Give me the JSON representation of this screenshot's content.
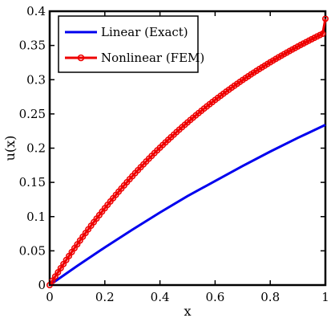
{
  "chart_data": {
    "type": "line",
    "xlabel": "x",
    "ylabel": "u(x)",
    "xlim": [
      0,
      1
    ],
    "ylim": [
      0,
      0.4
    ],
    "x_ticks": [
      0,
      0.2,
      0.4,
      0.6,
      0.8,
      1
    ],
    "x_tick_labels": [
      "0",
      "0.2",
      "0.4",
      "0.6",
      "0.8",
      "1"
    ],
    "y_ticks": [
      0,
      0.05,
      0.1,
      0.15,
      0.2,
      0.25,
      0.3,
      0.35,
      0.4
    ],
    "y_tick_labels": [
      "0",
      "0.05",
      "0.1",
      "0.15",
      "0.2",
      "0.25",
      "0.3",
      "0.35",
      "0.4"
    ],
    "grid": false,
    "legend_position": "top-left",
    "series": [
      {
        "name": "Linear (Exact)",
        "color": "#0000ee",
        "marker": "none",
        "x": [
          0,
          0.1,
          0.2,
          0.3,
          0.4,
          0.5,
          0.6,
          0.7,
          0.8,
          0.9,
          1.0
        ],
        "y": [
          0,
          0.028,
          0.055,
          0.081,
          0.106,
          0.13,
          0.152,
          0.174,
          0.195,
          0.215,
          0.234
        ]
      },
      {
        "name": "Nonlinear (FEM)",
        "color": "#ee0000",
        "marker": "circle",
        "x": [
          0,
          0.01,
          0.02,
          0.03,
          0.04,
          0.05,
          0.06,
          0.07,
          0.08,
          0.09,
          0.1,
          0.11,
          0.12,
          0.13,
          0.14,
          0.15,
          0.16,
          0.17,
          0.18,
          0.19,
          0.2,
          0.21,
          0.22,
          0.23,
          0.24,
          0.25,
          0.26,
          0.27,
          0.28,
          0.29,
          0.3,
          0.31,
          0.32,
          0.33,
          0.34,
          0.35,
          0.36,
          0.37,
          0.38,
          0.39,
          0.4,
          0.41,
          0.42,
          0.43,
          0.44,
          0.45,
          0.46,
          0.47,
          0.48,
          0.49,
          0.5,
          0.51,
          0.52,
          0.53,
          0.54,
          0.55,
          0.56,
          0.57,
          0.58,
          0.59,
          0.6,
          0.61,
          0.62,
          0.63,
          0.64,
          0.65,
          0.66,
          0.67,
          0.68,
          0.69,
          0.7,
          0.71,
          0.72,
          0.73,
          0.74,
          0.75,
          0.76,
          0.77,
          0.78,
          0.79,
          0.8,
          0.81,
          0.82,
          0.83,
          0.84,
          0.85,
          0.86,
          0.87,
          0.88,
          0.89,
          0.9,
          0.91,
          0.92,
          0.93,
          0.94,
          0.95,
          0.96,
          0.97,
          0.98,
          0.99,
          1.0
        ],
        "y": [
          0,
          0.0063,
          0.0125,
          0.0186,
          0.0247,
          0.0307,
          0.0366,
          0.0424,
          0.0482,
          0.0539,
          0.0595,
          0.0651,
          0.0706,
          0.076,
          0.0814,
          0.0867,
          0.0919,
          0.0971,
          0.1022,
          0.1073,
          0.1123,
          0.1172,
          0.1221,
          0.1269,
          0.1317,
          0.1364,
          0.141,
          0.1456,
          0.1502,
          0.1547,
          0.1591,
          0.1635,
          0.1678,
          0.1721,
          0.1763,
          0.1805,
          0.1847,
          0.1887,
          0.1928,
          0.1968,
          0.2007,
          0.2046,
          0.2084,
          0.2122,
          0.216,
          0.2197,
          0.2234,
          0.227,
          0.2306,
          0.2341,
          0.2376,
          0.2411,
          0.2445,
          0.2479,
          0.2512,
          0.2545,
          0.2578,
          0.261,
          0.2642,
          0.2673,
          0.2704,
          0.2735,
          0.2765,
          0.2795,
          0.2825,
          0.2854,
          0.2883,
          0.2912,
          0.294,
          0.2968,
          0.2996,
          0.3023,
          0.305,
          0.3077,
          0.3103,
          0.3129,
          0.3155,
          0.318,
          0.3205,
          0.323,
          0.3255,
          0.3279,
          0.3303,
          0.3327,
          0.335,
          0.3373,
          0.3396,
          0.3419,
          0.3441,
          0.3463,
          0.3485,
          0.3507,
          0.3528,
          0.3549,
          0.357,
          0.3591,
          0.3611,
          0.3632,
          0.3652,
          0.3671,
          0.389
        ]
      }
    ]
  }
}
